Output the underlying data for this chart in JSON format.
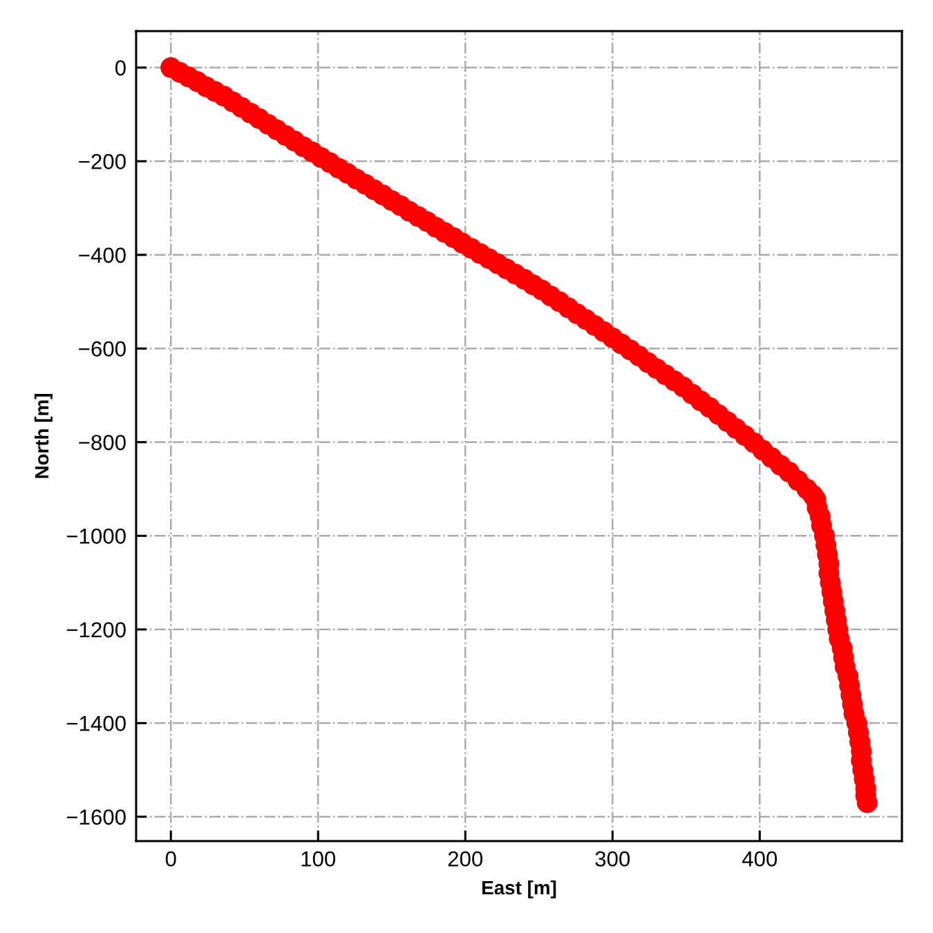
{
  "chart_data": {
    "type": "scatter",
    "xlabel": "East [m]",
    "ylabel": "North [m]",
    "color": "#ff0000",
    "marker": "circle",
    "grid": true,
    "x": [
      0,
      6,
      12,
      18,
      24,
      30,
      36,
      42,
      48,
      54,
      60,
      66,
      72,
      78,
      84,
      90,
      96,
      102,
      108,
      114,
      120,
      126,
      132,
      138,
      144,
      150,
      156,
      162,
      168,
      174,
      180,
      186,
      192,
      198,
      204,
      210,
      216,
      222,
      228,
      234,
      240,
      246,
      252,
      258,
      264,
      270,
      276,
      282,
      288,
      294,
      300,
      306,
      312,
      318,
      324,
      330,
      336,
      342,
      348,
      354,
      360,
      366,
      372,
      378,
      384,
      390,
      396,
      402,
      408,
      414,
      420,
      426,
      432,
      436,
      438,
      439,
      441,
      442,
      444,
      445,
      446,
      447,
      447,
      448,
      449,
      450,
      451,
      452,
      453,
      454,
      456,
      457,
      458,
      460,
      461,
      462,
      463,
      464,
      466,
      467,
      468,
      469,
      469,
      470,
      471,
      472,
      472,
      473
    ],
    "values": [
      0,
      -10,
      -20,
      -30,
      -41,
      -51,
      -61,
      -73,
      -85,
      -97,
      -109,
      -121,
      -133,
      -145,
      -157,
      -169,
      -180,
      -192,
      -203,
      -215,
      -226,
      -238,
      -249,
      -261,
      -272,
      -284,
      -295,
      -307,
      -318,
      -329,
      -341,
      -352,
      -363,
      -375,
      -386,
      -397,
      -408,
      -419,
      -430,
      -441,
      -452,
      -464,
      -475,
      -488,
      -500,
      -513,
      -526,
      -538,
      -551,
      -564,
      -577,
      -590,
      -603,
      -616,
      -630,
      -643,
      -656,
      -669,
      -682,
      -697,
      -712,
      -726,
      -741,
      -756,
      -771,
      -786,
      -801,
      -817,
      -833,
      -849,
      -864,
      -882,
      -900,
      -913,
      -922,
      -940,
      -958,
      -978,
      -1000,
      -1020,
      -1040,
      -1060,
      -1080,
      -1100,
      -1120,
      -1140,
      -1160,
      -1180,
      -1200,
      -1220,
      -1240,
      -1260,
      -1280,
      -1300,
      -1320,
      -1340,
      -1360,
      -1380,
      -1400,
      -1420,
      -1440,
      -1460,
      -1480,
      -1500,
      -1520,
      -1540,
      -1555,
      -1570
    ],
    "xlim": [
      -23.6,
      496.6
    ],
    "ylim": [
      -1652,
      78
    ],
    "xticks": [
      0,
      100,
      200,
      300,
      400
    ],
    "yticks": [
      {
        "value": 0,
        "label": "0"
      },
      {
        "value": -200,
        "label": "−200"
      },
      {
        "value": -400,
        "label": "−400"
      },
      {
        "value": -600,
        "label": "−600"
      },
      {
        "value": -800,
        "label": "−800"
      },
      {
        "value": -1000,
        "label": "−1000"
      },
      {
        "value": -1200,
        "label": "−1200"
      },
      {
        "value": -1400,
        "label": "−1400"
      },
      {
        "value": -1600,
        "label": "−1600"
      }
    ]
  }
}
